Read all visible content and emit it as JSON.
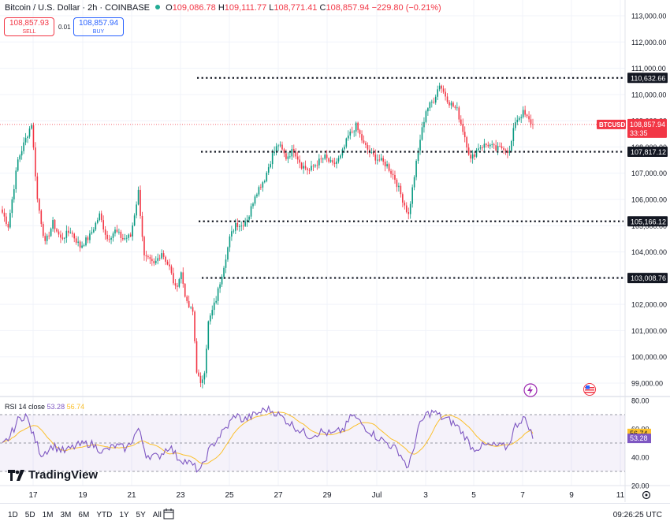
{
  "header": {
    "title": "Bitcoin / U.S. Dollar · 2h · COINBASE",
    "o_label": "O",
    "o": "109,086.78",
    "h_label": "H",
    "h": "109,111.77",
    "l_label": "L",
    "l": "108,771.41",
    "c_label": "C",
    "c": "108,857.94",
    "change": "−229.80 (−0.21%)"
  },
  "trade": {
    "sell_price": "108,857.93",
    "sell_label": "SELL",
    "spread": "0.01",
    "buy_price": "108,857.94",
    "buy_label": "BUY"
  },
  "price_axis": {
    "ticks": [
      "113,000.00",
      "112,000.00",
      "111,000.00",
      "110,000.00",
      "109,000.00",
      "108,000.00",
      "107,000.00",
      "106,000.00",
      "105,000.00",
      "104,000.00",
      "103,000.00",
      "102,000.00",
      "101,000.00",
      "100,000.00",
      "99,000.00"
    ]
  },
  "levels": [
    {
      "label": "110,632.66",
      "value": 110632.66
    },
    {
      "label": "107,817.12",
      "value": 107817.12
    },
    {
      "label": "105,166.12",
      "value": 105166.12
    },
    {
      "label": "103,008.76",
      "value": 103008.76
    }
  ],
  "current": {
    "symbol": "BTCUSD",
    "price": "108,857.94",
    "countdown": "33:35",
    "value": 108857.94
  },
  "rsi": {
    "label": "RSI 14 close",
    "value": "53.28",
    "ma": "56.74",
    "ticks": [
      "80.00",
      "60.00",
      "40.00",
      "20.00"
    ],
    "colors": {
      "rsi": "#7e57c2",
      "ma": "#fbc02d"
    }
  },
  "time_axis": {
    "labels": [
      "17",
      "19",
      "21",
      "23",
      "25",
      "27",
      "29",
      "Jul",
      "3",
      "5",
      "7",
      "9",
      "11"
    ]
  },
  "ranges": [
    "1D",
    "5D",
    "1M",
    "3M",
    "6M",
    "YTD",
    "1Y",
    "5Y",
    "All"
  ],
  "clock": "09:26:25 UTC",
  "branding": {
    "name": "TradingView"
  },
  "chart_data": {
    "type": "candlestick",
    "xlabel": "",
    "ylabel": "",
    "ylim": [
      98500,
      113300
    ],
    "up_color": "#089981",
    "down_color": "#f23645",
    "anchors": [
      [
        0,
        105500
      ],
      [
        3,
        105000
      ],
      [
        8,
        107500
      ],
      [
        12,
        108300
      ],
      [
        15,
        108900
      ],
      [
        18,
        106000
      ],
      [
        22,
        104300
      ],
      [
        26,
        105100
      ],
      [
        30,
        104500
      ],
      [
        35,
        104800
      ],
      [
        40,
        104200
      ],
      [
        45,
        104600
      ],
      [
        50,
        105400
      ],
      [
        54,
        104500
      ],
      [
        58,
        104800
      ],
      [
        62,
        104500
      ],
      [
        66,
        104600
      ],
      [
        70,
        106300
      ],
      [
        73,
        103800
      ],
      [
        78,
        103500
      ],
      [
        82,
        104000
      ],
      [
        86,
        103400
      ],
      [
        89,
        102600
      ],
      [
        92,
        103200
      ],
      [
        95,
        102000
      ],
      [
        98,
        101700
      ],
      [
        100,
        99500
      ],
      [
        102,
        98900
      ],
      [
        104,
        99500
      ],
      [
        106,
        101300
      ],
      [
        110,
        102200
      ],
      [
        114,
        103500
      ],
      [
        117,
        104500
      ],
      [
        120,
        105100
      ],
      [
        123,
        105000
      ],
      [
        127,
        105400
      ],
      [
        130,
        106200
      ],
      [
        135,
        106800
      ],
      [
        139,
        107700
      ],
      [
        142,
        108100
      ],
      [
        146,
        107600
      ],
      [
        150,
        107900
      ],
      [
        154,
        107300
      ],
      [
        158,
        107100
      ],
      [
        162,
        107400
      ],
      [
        166,
        107600
      ],
      [
        170,
        107300
      ],
      [
        174,
        107600
      ],
      [
        178,
        108400
      ],
      [
        182,
        108800
      ],
      [
        186,
        108100
      ],
      [
        190,
        107700
      ],
      [
        194,
        107500
      ],
      [
        198,
        107300
      ],
      [
        202,
        106800
      ],
      [
        206,
        106000
      ],
      [
        209,
        105400
      ],
      [
        212,
        106900
      ],
      [
        215,
        108300
      ],
      [
        218,
        109400
      ],
      [
        222,
        109800
      ],
      [
        225,
        110400
      ],
      [
        227,
        110100
      ],
      [
        230,
        109700
      ],
      [
        234,
        109400
      ],
      [
        238,
        108400
      ],
      [
        241,
        107500
      ],
      [
        245,
        108000
      ],
      [
        250,
        108100
      ],
      [
        254,
        107900
      ],
      [
        258,
        108000
      ],
      [
        261,
        107800
      ],
      [
        264,
        109000
      ],
      [
        268,
        109300
      ],
      [
        271,
        109000
      ],
      [
        273,
        108860
      ]
    ],
    "rsi_anchors": [
      [
        0,
        48
      ],
      [
        4,
        55
      ],
      [
        8,
        66
      ],
      [
        12,
        70
      ],
      [
        16,
        55
      ],
      [
        20,
        42
      ],
      [
        26,
        48
      ],
      [
        32,
        44
      ],
      [
        38,
        48
      ],
      [
        45,
        50
      ],
      [
        52,
        44
      ],
      [
        58,
        48
      ],
      [
        64,
        46
      ],
      [
        70,
        60
      ],
      [
        74,
        42
      ],
      [
        80,
        40
      ],
      [
        86,
        48
      ],
      [
        90,
        40
      ],
      [
        96,
        36
      ],
      [
        102,
        30
      ],
      [
        106,
        44
      ],
      [
        110,
        52
      ],
      [
        116,
        62
      ],
      [
        120,
        70
      ],
      [
        124,
        66
      ],
      [
        130,
        70
      ],
      [
        136,
        74
      ],
      [
        140,
        72
      ],
      [
        146,
        66
      ],
      [
        152,
        60
      ],
      [
        158,
        55
      ],
      [
        164,
        58
      ],
      [
        170,
        56
      ],
      [
        176,
        60
      ],
      [
        180,
        70
      ],
      [
        186,
        62
      ],
      [
        192,
        55
      ],
      [
        198,
        50
      ],
      [
        204,
        44
      ],
      [
        209,
        32
      ],
      [
        214,
        60
      ],
      [
        218,
        70
      ],
      [
        222,
        72
      ],
      [
        226,
        68
      ],
      [
        230,
        66
      ],
      [
        234,
        62
      ],
      [
        238,
        55
      ],
      [
        242,
        46
      ],
      [
        248,
        48
      ],
      [
        254,
        48
      ],
      [
        260,
        47
      ],
      [
        264,
        62
      ],
      [
        268,
        68
      ],
      [
        271,
        62
      ],
      [
        273,
        53
      ]
    ]
  }
}
